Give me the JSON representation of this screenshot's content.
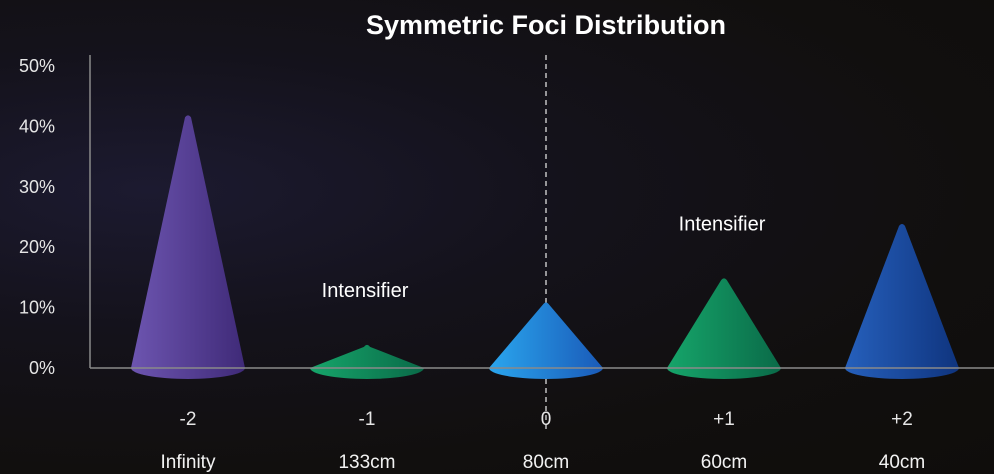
{
  "colors": {
    "purple": [
      "#6d55b0",
      "#3f2a78"
    ],
    "green": [
      "#16a56a",
      "#0a6a48"
    ],
    "blue": [
      "#2aa6ee",
      "#1a5ab8"
    ],
    "navy": [
      "#2660bc",
      "#0f347e"
    ]
  },
  "chart_data": {
    "type": "bar",
    "title": "Symmetric Foci Distribution",
    "categories": [
      "-2",
      "-1",
      "0",
      "+1",
      "+2"
    ],
    "sublabels": [
      "Infinity",
      "133cm",
      "80cm",
      "60cm",
      "40cm"
    ],
    "values": [
      42,
      4,
      11,
      15,
      24
    ],
    "bar_colors": [
      "purple",
      "green",
      "blue",
      "green",
      "navy"
    ],
    "yticks": [
      "0%",
      "10%",
      "20%",
      "30%",
      "40%",
      "50%"
    ],
    "ylim": [
      0,
      50
    ],
    "grid": false,
    "annotations": [
      {
        "category": "-1",
        "text": "Intensifier"
      },
      {
        "category": "+1",
        "text": "Intensifier"
      }
    ],
    "reference_line": {
      "category": "0",
      "style": "dashed"
    }
  }
}
